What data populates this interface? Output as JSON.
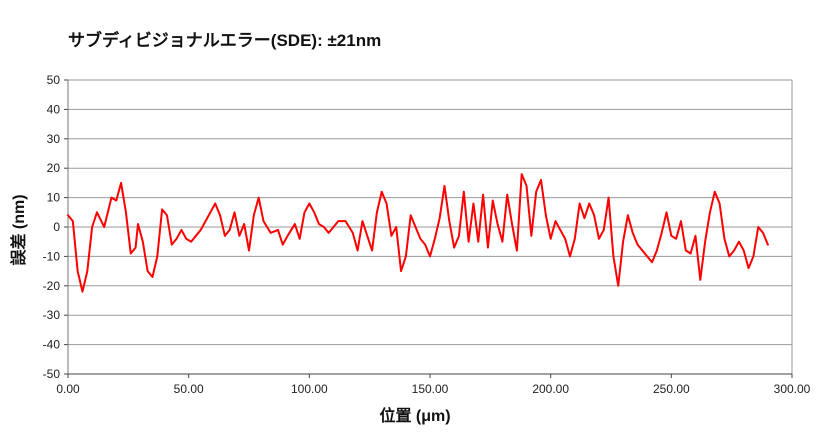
{
  "chart_data": {
    "type": "line",
    "title": "サブディビジョナルエラー(SDE): ±21nm",
    "xlabel": "位置 (μm)",
    "ylabel": "誤差 (nm)",
    "xlim": [
      0,
      300
    ],
    "ylim": [
      -50,
      50
    ],
    "x_ticks": [
      "0.00",
      "50.00",
      "100.00",
      "150.00",
      "200.00",
      "250.00",
      "300.00"
    ],
    "y_ticks": [
      "50",
      "40",
      "30",
      "20",
      "10",
      "0",
      "-10",
      "-20",
      "-30",
      "-40",
      "-50"
    ],
    "grid": "horizontal",
    "legend": "none",
    "series": [
      {
        "color": "#ff0000",
        "points": [
          [
            0,
            4
          ],
          [
            2,
            2
          ],
          [
            4,
            -15
          ],
          [
            6,
            -22
          ],
          [
            8,
            -15
          ],
          [
            10,
            0
          ],
          [
            12,
            5
          ],
          [
            15,
            0
          ],
          [
            18,
            10
          ],
          [
            20,
            9
          ],
          [
            22,
            15
          ],
          [
            24,
            5
          ],
          [
            26,
            -9
          ],
          [
            28,
            -7
          ],
          [
            29,
            1
          ],
          [
            31,
            -5
          ],
          [
            33,
            -15
          ],
          [
            35,
            -17
          ],
          [
            37,
            -10
          ],
          [
            39,
            6
          ],
          [
            41,
            4
          ],
          [
            43,
            -6
          ],
          [
            45,
            -4
          ],
          [
            47,
            -1
          ],
          [
            49,
            -4
          ],
          [
            51,
            -5
          ],
          [
            53,
            -3
          ],
          [
            55,
            -1
          ],
          [
            57,
            2
          ],
          [
            59,
            5
          ],
          [
            61,
            8
          ],
          [
            63,
            4
          ],
          [
            65,
            -3
          ],
          [
            67,
            -1
          ],
          [
            69,
            5
          ],
          [
            71,
            -3
          ],
          [
            73,
            1
          ],
          [
            75,
            -8
          ],
          [
            77,
            4
          ],
          [
            79,
            10
          ],
          [
            81,
            2
          ],
          [
            84,
            -2
          ],
          [
            87,
            -1
          ],
          [
            89,
            -6
          ],
          [
            91,
            -3
          ],
          [
            94,
            1
          ],
          [
            96,
            -4
          ],
          [
            98,
            5
          ],
          [
            100,
            8
          ],
          [
            102,
            5
          ],
          [
            104,
            1
          ],
          [
            106,
            0
          ],
          [
            108,
            -2
          ],
          [
            110,
            0
          ],
          [
            112,
            2
          ],
          [
            115,
            2
          ],
          [
            118,
            -2
          ],
          [
            120,
            -8
          ],
          [
            122,
            2
          ],
          [
            124,
            -3
          ],
          [
            126,
            -8
          ],
          [
            128,
            5
          ],
          [
            130,
            12
          ],
          [
            132,
            8
          ],
          [
            134,
            -3
          ],
          [
            136,
            0
          ],
          [
            138,
            -15
          ],
          [
            140,
            -10
          ],
          [
            142,
            4
          ],
          [
            144,
            0
          ],
          [
            146,
            -4
          ],
          [
            148,
            -6
          ],
          [
            150,
            -10
          ],
          [
            152,
            -4
          ],
          [
            154,
            3
          ],
          [
            156,
            14
          ],
          [
            158,
            2
          ],
          [
            160,
            -7
          ],
          [
            162,
            -3
          ],
          [
            164,
            12
          ],
          [
            166,
            -5
          ],
          [
            168,
            8
          ],
          [
            170,
            -5
          ],
          [
            172,
            11
          ],
          [
            174,
            -7
          ],
          [
            176,
            9
          ],
          [
            178,
            1
          ],
          [
            180,
            -5
          ],
          [
            182,
            11
          ],
          [
            184,
            1
          ],
          [
            186,
            -8
          ],
          [
            188,
            18
          ],
          [
            190,
            14
          ],
          [
            192,
            -3
          ],
          [
            194,
            12
          ],
          [
            196,
            16
          ],
          [
            198,
            4
          ],
          [
            200,
            -4
          ],
          [
            202,
            2
          ],
          [
            204,
            -1
          ],
          [
            206,
            -4
          ],
          [
            208,
            -10
          ],
          [
            210,
            -4
          ],
          [
            212,
            8
          ],
          [
            214,
            3
          ],
          [
            216,
            8
          ],
          [
            218,
            4
          ],
          [
            220,
            -4
          ],
          [
            222,
            -1
          ],
          [
            224,
            10
          ],
          [
            226,
            -10
          ],
          [
            228,
            -20
          ],
          [
            230,
            -5
          ],
          [
            232,
            4
          ],
          [
            234,
            -2
          ],
          [
            236,
            -6
          ],
          [
            238,
            -8
          ],
          [
            240,
            -10
          ],
          [
            242,
            -12
          ],
          [
            244,
            -8
          ],
          [
            246,
            -2
          ],
          [
            248,
            5
          ],
          [
            250,
            -3
          ],
          [
            252,
            -4
          ],
          [
            254,
            2
          ],
          [
            256,
            -8
          ],
          [
            258,
            -9
          ],
          [
            260,
            -3
          ],
          [
            262,
            -18
          ],
          [
            264,
            -5
          ],
          [
            266,
            5
          ],
          [
            268,
            12
          ],
          [
            270,
            8
          ],
          [
            272,
            -4
          ],
          [
            274,
            -10
          ],
          [
            276,
            -8
          ],
          [
            278,
            -5
          ],
          [
            280,
            -8
          ],
          [
            282,
            -14
          ],
          [
            284,
            -10
          ],
          [
            286,
            0
          ],
          [
            288,
            -2
          ],
          [
            290,
            -6
          ]
        ]
      }
    ]
  }
}
